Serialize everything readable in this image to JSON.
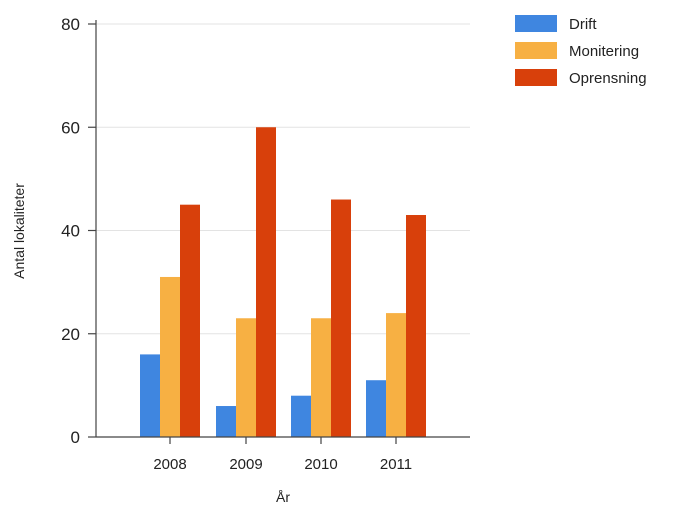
{
  "chart_data": {
    "type": "bar",
    "title": "",
    "xlabel": "År",
    "ylabel": "Antal lokaliteter",
    "ylim": [
      0,
      80
    ],
    "yticks": [
      0,
      20,
      40,
      60,
      80
    ],
    "grid": true,
    "legend_position": "top-right",
    "categories": [
      "2008",
      "2009",
      "2010",
      "2011"
    ],
    "series": [
      {
        "name": "Drift",
        "color": "#3f86e0",
        "values": [
          16,
          6,
          8,
          11
        ]
      },
      {
        "name": "Monitering",
        "color": "#f7b043",
        "values": [
          31,
          23,
          23,
          24
        ]
      },
      {
        "name": "Oprensning",
        "color": "#d8400b",
        "values": [
          45,
          60,
          46,
          43
        ]
      }
    ]
  }
}
